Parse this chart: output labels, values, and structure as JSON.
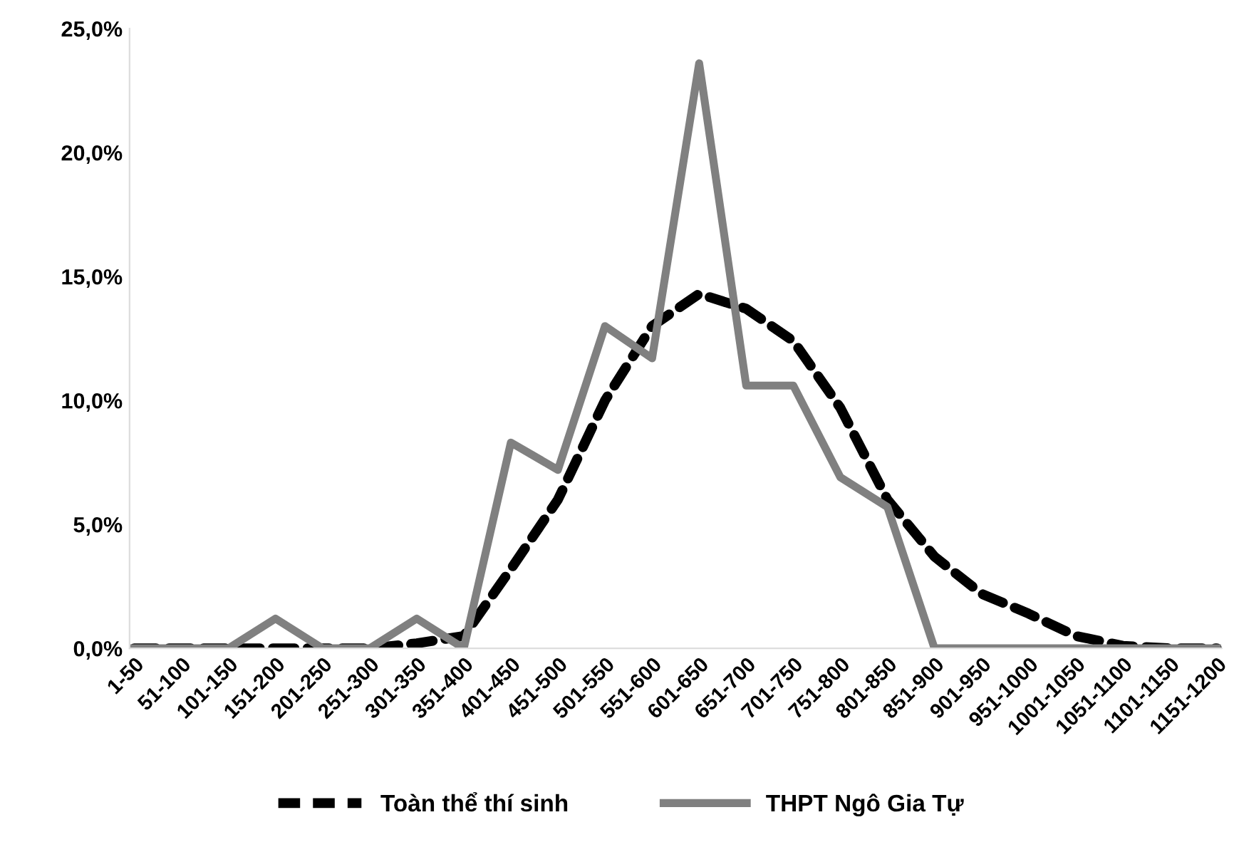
{
  "chart_data": {
    "type": "line",
    "categories": [
      "1-50",
      "51-100",
      "101-150",
      "151-200",
      "201-250",
      "251-300",
      "301-350",
      "351-400",
      "401-450",
      "451-500",
      "501-550",
      "551-600",
      "601-650",
      "651-700",
      "701-750",
      "751-800",
      "801-850",
      "851-900",
      "901-950",
      "951-1000",
      "1001-1050",
      "1051-1100",
      "1101-1150",
      "1151-1200"
    ],
    "series": [
      {
        "name": "Toàn thể thí sinh",
        "color": "#000000",
        "line_style": "dashed",
        "values": [
          0,
          0,
          0,
          0,
          0,
          0,
          0.2,
          0.5,
          3.2,
          6.0,
          10.0,
          13.0,
          14.3,
          13.7,
          12.4,
          9.7,
          6.0,
          3.7,
          2.2,
          1.4,
          0.5,
          0.1,
          0,
          0
        ]
      },
      {
        "name": "THPT Ngô Gia Tự",
        "color": "#808080",
        "line_style": "solid",
        "values": [
          0,
          0,
          0,
          1.2,
          0,
          0,
          1.2,
          0,
          8.3,
          7.2,
          13.0,
          11.7,
          23.6,
          10.6,
          10.6,
          6.9,
          5.7,
          0,
          0,
          0,
          0,
          0,
          0,
          0
        ]
      }
    ],
    "ylim": [
      0,
      25
    ],
    "yticks": [
      {
        "value": 0,
        "label": "0,0%"
      },
      {
        "value": 5,
        "label": "5,0%"
      },
      {
        "value": 10,
        "label": "10,0%"
      },
      {
        "value": 15,
        "label": "15,0%"
      },
      {
        "value": 20,
        "label": "20,0%"
      },
      {
        "value": 25,
        "label": "25,0%"
      }
    ],
    "grid": false,
    "legend": "bottom"
  }
}
